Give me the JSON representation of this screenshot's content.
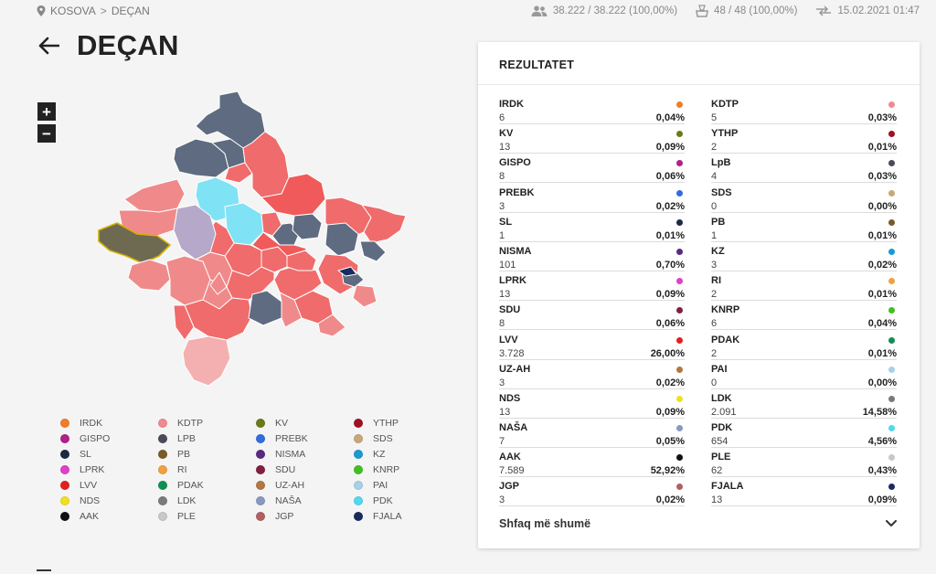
{
  "breadcrumb": {
    "root": "KOSOVA",
    "separator": ">",
    "current": "DEÇAN"
  },
  "stats": {
    "voters": "38.222 / 38.222 (100,00%)",
    "polling_stations": "48 / 48 (100,00%)",
    "updated": "15.02.2021 01:47"
  },
  "title": "DEÇAN",
  "zoom": {
    "in": "+",
    "out": "−"
  },
  "results": {
    "title": "REZULTATET",
    "show_more": "Shfaq më shumë",
    "items": [
      {
        "name": "IRDK",
        "votes": "6",
        "pct": "0,04%",
        "color": "#f07d2b"
      },
      {
        "name": "KDTP",
        "votes": "5",
        "pct": "0,03%",
        "color": "#f08a8f"
      },
      {
        "name": "KV",
        "votes": "13",
        "pct": "0,09%",
        "color": "#6b7a1a"
      },
      {
        "name": "YTHP",
        "votes": "2",
        "pct": "0,01%",
        "color": "#a01020"
      },
      {
        "name": "GISPO",
        "votes": "8",
        "pct": "0,06%",
        "color": "#b0208a"
      },
      {
        "name": "LpB",
        "votes": "4",
        "pct": "0,03%",
        "color": "#4a4a58"
      },
      {
        "name": "PREBK",
        "votes": "3",
        "pct": "0,02%",
        "color": "#2f6de0"
      },
      {
        "name": "SDS",
        "votes": "0",
        "pct": "0,00%",
        "color": "#c8a878"
      },
      {
        "name": "SL",
        "votes": "1",
        "pct": "0,01%",
        "color": "#1e2a44"
      },
      {
        "name": "PB",
        "votes": "1",
        "pct": "0,01%",
        "color": "#7a5a2a"
      },
      {
        "name": "NISMA",
        "votes": "101",
        "pct": "0,70%",
        "color": "#5a2a80"
      },
      {
        "name": "KZ",
        "votes": "3",
        "pct": "0,02%",
        "color": "#1a9ad0"
      },
      {
        "name": "LPRK",
        "votes": "13",
        "pct": "0,09%",
        "color": "#e040c8"
      },
      {
        "name": "RI",
        "votes": "2",
        "pct": "0,01%",
        "color": "#f0a040"
      },
      {
        "name": "SDU",
        "votes": "8",
        "pct": "0,06%",
        "color": "#802040"
      },
      {
        "name": "KNRP",
        "votes": "6",
        "pct": "0,04%",
        "color": "#40c020"
      },
      {
        "name": "LVV",
        "votes": "3.728",
        "pct": "26,00%",
        "color": "#e02020"
      },
      {
        "name": "PDAK",
        "votes": "2",
        "pct": "0,01%",
        "color": "#109050"
      },
      {
        "name": "UZ-AH",
        "votes": "3",
        "pct": "0,02%",
        "color": "#b07840"
      },
      {
        "name": "PAI",
        "votes": "0",
        "pct": "0,00%",
        "color": "#a8d0e8"
      },
      {
        "name": "NDS",
        "votes": "13",
        "pct": "0,09%",
        "color": "#f0e020"
      },
      {
        "name": "LDK",
        "votes": "2.091",
        "pct": "14,58%",
        "color": "#7a7a7a"
      },
      {
        "name": "NAŠA",
        "votes": "7",
        "pct": "0,05%",
        "color": "#8898c0"
      },
      {
        "name": "PDK",
        "votes": "654",
        "pct": "4,56%",
        "color": "#50d8f0"
      },
      {
        "name": "AAK",
        "votes": "7.589",
        "pct": "52,92%",
        "color": "#111111"
      },
      {
        "name": "PLE",
        "votes": "62",
        "pct": "0,43%",
        "color": "#c8c8c8"
      },
      {
        "name": "JGP",
        "votes": "3",
        "pct": "0,02%",
        "color": "#b06060"
      },
      {
        "name": "FJALA",
        "votes": "13",
        "pct": "0,09%",
        "color": "#1a2a60"
      }
    ]
  },
  "legend": [
    {
      "name": "IRDK",
      "color": "#f07d2b"
    },
    {
      "name": "KDTP",
      "color": "#f08a8f"
    },
    {
      "name": "KV",
      "color": "#6b7a1a"
    },
    {
      "name": "YTHP",
      "color": "#a01020"
    },
    {
      "name": "GISPO",
      "color": "#b0208a"
    },
    {
      "name": "LPB",
      "color": "#4a4a58"
    },
    {
      "name": "PREBK",
      "color": "#2f6de0"
    },
    {
      "name": "SDS",
      "color": "#c8a878"
    },
    {
      "name": "SL",
      "color": "#1e2a44"
    },
    {
      "name": "PB",
      "color": "#7a5a2a"
    },
    {
      "name": "NISMA",
      "color": "#5a2a80"
    },
    {
      "name": "KZ",
      "color": "#1a9ad0"
    },
    {
      "name": "LPRK",
      "color": "#e040c8"
    },
    {
      "name": "RI",
      "color": "#f0a040"
    },
    {
      "name": "SDU",
      "color": "#802040"
    },
    {
      "name": "KNRP",
      "color": "#40c020"
    },
    {
      "name": "LVV",
      "color": "#e02020"
    },
    {
      "name": "PDAK",
      "color": "#109050"
    },
    {
      "name": "UZ-AH",
      "color": "#b07840"
    },
    {
      "name": "PAI",
      "color": "#a8d0e8"
    },
    {
      "name": "NDS",
      "color": "#f0e020"
    },
    {
      "name": "LDK",
      "color": "#7a7a7a"
    },
    {
      "name": "NAŠA",
      "color": "#8898c0"
    },
    {
      "name": "PDK",
      "color": "#50d8f0"
    },
    {
      "name": "AAK",
      "color": "#111111"
    },
    {
      "name": "PLE",
      "color": "#c8c8c8"
    },
    {
      "name": "JGP",
      "color": "#b06060"
    },
    {
      "name": "FJALA",
      "color": "#1a2a60"
    }
  ],
  "map_colors": {
    "lvv_light": "#f08a8a",
    "lvv_mid": "#f06b6b",
    "lvv_dark": "#f05a5a",
    "ldk": "#5e6b80",
    "pdk": "#7fe3f5",
    "nisma": "#b5a8c8",
    "aak": "#6e6a52",
    "other_light": "#f4b0b0"
  }
}
